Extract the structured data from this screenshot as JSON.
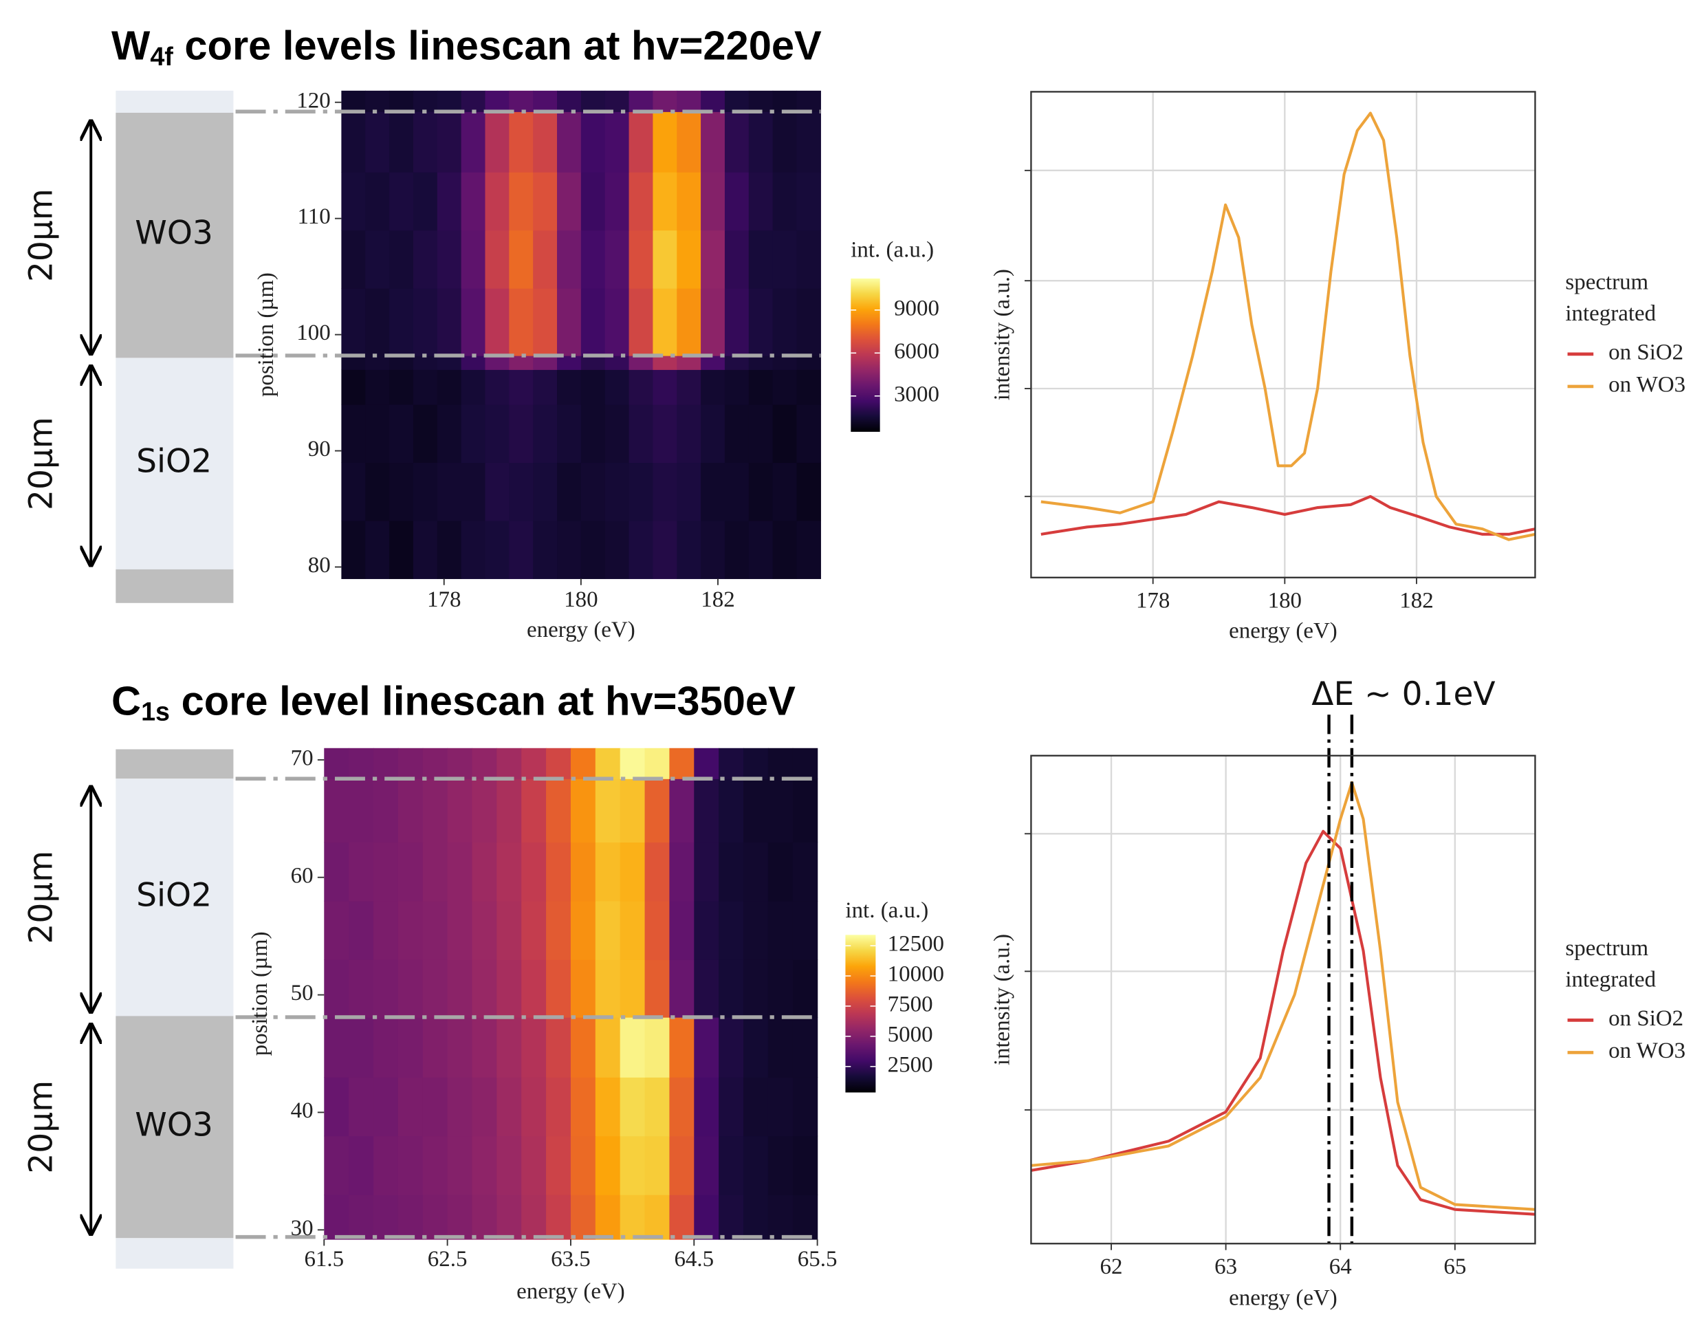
{
  "chart_data": [
    {
      "type": "heatmap",
      "title": [
        "W",
        "4f",
        " core levels linescan at hv=220eV"
      ],
      "x_label": "energy (eV)",
      "y_label": "position (µm)",
      "colorbar_title": "int. (a.u.)",
      "colormap": "inferno",
      "xlim": [
        176.5,
        183.5
      ],
      "xticks": [
        178,
        180,
        182
      ],
      "ylim": [
        79,
        121
      ],
      "yticks": [
        80,
        90,
        100,
        110,
        120
      ],
      "zlim": [
        500,
        11200
      ],
      "zticks": [
        3000,
        6000,
        9000
      ],
      "x_bins": [
        176.5,
        176.85,
        177.2,
        177.55,
        177.9,
        178.25,
        178.6,
        178.95,
        179.3,
        179.65,
        180,
        180.35,
        180.7,
        181.05,
        181.4,
        181.75,
        182.1,
        182.45,
        182.8,
        183.15,
        183.5
      ],
      "y_bins": [
        79,
        84,
        89,
        94,
        97,
        98.2,
        104,
        109,
        114,
        119.2,
        121
      ],
      "z": [
        [
          1100,
          1300,
          1000,
          1400,
          1200,
          1500,
          1600,
          1800,
          1500,
          1400,
          1300,
          1400,
          1700,
          1900,
          1600,
          1400,
          1200,
          1300,
          1100,
          1200
        ],
        [
          1300,
          1100,
          1200,
          1300,
          1400,
          1400,
          1800,
          1700,
          1600,
          1300,
          1400,
          1500,
          1600,
          1800,
          1700,
          1300,
          1300,
          1100,
          1200,
          1000
        ],
        [
          1200,
          1200,
          1300,
          1100,
          1300,
          1600,
          1700,
          1900,
          1700,
          1500,
          1300,
          1400,
          1800,
          2000,
          1800,
          1500,
          1200,
          1200,
          1000,
          1200
        ],
        [
          1000,
          1200,
          1100,
          1300,
          1200,
          1500,
          1800,
          2000,
          1800,
          1400,
          1300,
          1500,
          1900,
          2200,
          1900,
          1400,
          1300,
          1100,
          1200,
          1100
        ],
        [
          1300,
          1400,
          1300,
          1500,
          1600,
          2400,
          3600,
          4300,
          3900,
          2600,
          2000,
          2300,
          4000,
          5500,
          5000,
          2800,
          1800,
          1500,
          1400,
          1300
        ],
        [
          1500,
          1400,
          1600,
          1700,
          1900,
          3200,
          5800,
          7200,
          6800,
          4100,
          2600,
          3000,
          6500,
          9500,
          8600,
          4600,
          2300,
          1700,
          1500,
          1400
        ],
        [
          1400,
          1600,
          1500,
          1800,
          2000,
          3400,
          6200,
          7600,
          6600,
          3900,
          2700,
          3100,
          6800,
          9800,
          9000,
          4700,
          2200,
          1600,
          1600,
          1500
        ],
        [
          1600,
          1500,
          1700,
          1600,
          2100,
          3500,
          6000,
          7300,
          6900,
          4200,
          2500,
          2900,
          6600,
          9300,
          8800,
          4400,
          2400,
          1800,
          1500,
          1600
        ],
        [
          1500,
          1700,
          1500,
          1800,
          1900,
          3100,
          5600,
          6900,
          6400,
          3800,
          2600,
          2800,
          6200,
          9000,
          8400,
          4300,
          2100,
          1700,
          1400,
          1500
        ],
        [
          1300,
          1400,
          1300,
          1500,
          1600,
          2000,
          2800,
          3300,
          3000,
          2200,
          1800,
          1900,
          3100,
          3900,
          3600,
          2400,
          1600,
          1400,
          1300,
          1400
        ]
      ],
      "boundaries": [
        119.2,
        98.2
      ],
      "layers": [
        {
          "from": 119.1,
          "to": 121,
          "color": "#e9edf3"
        },
        {
          "from": 98,
          "to": 119.1,
          "color": "#bebebe",
          "label": "WO3",
          "span": "20µm"
        },
        {
          "from": 79.8,
          "to": 98,
          "color": "#e9edf3",
          "label": "SiO2",
          "span": "20µm"
        },
        {
          "from": 76.9,
          "to": 79.8,
          "color": "#bebebe"
        }
      ]
    },
    {
      "type": "line",
      "x_label": "energy (eV)",
      "y_label": "intensity (a.u.)",
      "xlim": [
        176.15,
        183.8
      ],
      "xticks": [
        178,
        180,
        182
      ],
      "ylim": [
        0,
        100
      ],
      "yticks": [
        16.7,
        38.9,
        61.1,
        83.8
      ],
      "grid": true,
      "legend_title": [
        "spectrum",
        "integrated"
      ],
      "series": [
        {
          "name": "on SiO2",
          "color": "#d63c3c",
          "x": [
            176.3,
            177,
            177.5,
            178,
            178.5,
            179,
            179.5,
            180,
            180.5,
            181,
            181.3,
            181.6,
            182,
            182.5,
            183,
            183.4,
            183.8
          ],
          "values": [
            8.9,
            10.4,
            11,
            12,
            13,
            15.6,
            14.4,
            13,
            14.4,
            15,
            16.7,
            14.4,
            12.7,
            10.4,
            8.9,
            8.9,
            10
          ]
        },
        {
          "name": "on WO3",
          "color": "#eda33a",
          "x": [
            176.3,
            177,
            177.5,
            178,
            178.3,
            178.6,
            178.9,
            179.1,
            179.3,
            179.5,
            179.7,
            179.9,
            180.1,
            180.3,
            180.5,
            180.7,
            180.9,
            181.1,
            181.3,
            181.5,
            181.7,
            181.9,
            182.1,
            182.3,
            182.6,
            183,
            183.4,
            183.8
          ],
          "values": [
            15.6,
            14.4,
            13.3,
            15.6,
            30,
            45.6,
            63,
            76.7,
            70,
            52,
            39,
            23,
            23,
            25.6,
            39,
            63,
            83,
            92,
            95.6,
            90,
            70,
            45.6,
            27.8,
            16.7,
            11,
            10,
            7.8,
            8.9
          ]
        }
      ]
    },
    {
      "type": "heatmap",
      "title": [
        "C",
        "1s",
        " core level linescan at hv=350eV"
      ],
      "x_label": "energy (eV)",
      "y_label": "position (µm)",
      "colorbar_title": "int. (a.u.)",
      "colormap": "inferno",
      "xlim": [
        61.5,
        65.5
      ],
      "xticks": [
        61.5,
        62.5,
        63.5,
        64.5,
        65.5
      ],
      "ylim": [
        29.2,
        71
      ],
      "yticks": [
        30,
        40,
        50,
        60,
        70
      ],
      "zlim": [
        350,
        13400
      ],
      "zticks": [
        2500,
        5000,
        7500,
        10000,
        12500
      ],
      "x_bins": [
        61.5,
        61.7,
        61.9,
        62.1,
        62.3,
        62.5,
        62.7,
        62.9,
        63.1,
        63.3,
        63.5,
        63.7,
        63.9,
        64.1,
        64.3,
        64.5,
        64.7,
        64.9,
        65.1,
        65.3,
        65.5
      ],
      "y_bins": [
        29.2,
        33,
        38,
        43,
        48.1,
        53,
        58,
        63,
        68.4,
        71
      ],
      "z": [
        [
          4300,
          4400,
          4500,
          4600,
          4800,
          5000,
          5300,
          5700,
          6300,
          7300,
          8800,
          10500,
          11600,
          11400,
          8200,
          3000,
          1800,
          1500,
          1400,
          1300
        ],
        [
          4400,
          4300,
          4600,
          4700,
          4900,
          5100,
          5400,
          5800,
          6400,
          7500,
          9000,
          10800,
          11900,
          11800,
          8600,
          3200,
          1700,
          1500,
          1300,
          1200
        ],
        [
          4200,
          4500,
          4500,
          4800,
          4800,
          5100,
          5300,
          5900,
          6500,
          7400,
          9100,
          11000,
          12200,
          12000,
          8800,
          3100,
          1800,
          1400,
          1400,
          1300
        ],
        [
          4400,
          4400,
          4600,
          4700,
          5000,
          5200,
          5500,
          6000,
          6600,
          7600,
          9300,
          11400,
          13000,
          12800,
          9200,
          3300,
          1900,
          1500,
          1300,
          1300
        ],
        [
          4500,
          4600,
          4700,
          4900,
          5100,
          5300,
          5700,
          6200,
          7000,
          8300,
          10000,
          11500,
          11300,
          8600,
          4200,
          2000,
          1600,
          1400,
          1300,
          1200
        ],
        [
          4600,
          4500,
          4800,
          5000,
          5100,
          5400,
          5800,
          6300,
          7200,
          8500,
          10200,
          11600,
          11200,
          8400,
          4000,
          1900,
          1600,
          1400,
          1300,
          1300
        ],
        [
          4500,
          4700,
          4800,
          4900,
          5200,
          5400,
          5900,
          6400,
          7100,
          8400,
          10100,
          11400,
          11100,
          8300,
          4100,
          2000,
          1500,
          1400,
          1200,
          1300
        ],
        [
          4600,
          4600,
          4700,
          5000,
          5200,
          5500,
          5800,
          6300,
          7300,
          8600,
          10300,
          11700,
          11500,
          8700,
          4300,
          2000,
          1600,
          1300,
          1300,
          1200
        ],
        [
          4400,
          4500,
          4600,
          4800,
          5000,
          5200,
          5500,
          6000,
          6700,
          7700,
          9500,
          11800,
          13200,
          12900,
          9000,
          3000,
          1800,
          1500,
          1300,
          1300
        ]
      ],
      "boundaries": [
        68.4,
        48.1,
        29.4
      ],
      "layers": [
        {
          "from": 68.4,
          "to": 70.9,
          "color": "#bebebe"
        },
        {
          "from": 48.2,
          "to": 68.4,
          "color": "#e9edf3",
          "label": "SiO2",
          "span": "20µm"
        },
        {
          "from": 29.3,
          "to": 48.2,
          "color": "#bebebe",
          "label": "WO3",
          "span": "20µm"
        },
        {
          "from": 26.7,
          "to": 29.3,
          "color": "#e9edf3"
        }
      ]
    },
    {
      "type": "line",
      "x_label": "energy (eV)",
      "y_label": "intensity (a.u.)",
      "xlim": [
        61.3,
        65.7
      ],
      "xticks": [
        62,
        63,
        64,
        65
      ],
      "ylim": [
        0,
        100
      ],
      "yticks": [
        27.4,
        55.8,
        84
      ],
      "grid": true,
      "legend_title": [
        "spectrum",
        "integrated"
      ],
      "annotation": "ΔE ~ 0.1eV",
      "vlines": [
        63.9,
        64.1
      ],
      "series": [
        {
          "name": "on SiO2",
          "color": "#d63c3c",
          "x": [
            61.3,
            61.8,
            62.5,
            63,
            63.3,
            63.5,
            63.7,
            63.85,
            64,
            64.2,
            64.35,
            64.5,
            64.7,
            65,
            65.7
          ],
          "values": [
            15,
            17,
            21,
            27,
            38,
            60,
            78,
            84.5,
            81,
            60,
            34,
            16,
            9,
            7,
            6
          ]
        },
        {
          "name": "on WO3",
          "color": "#eda33a",
          "x": [
            61.3,
            61.8,
            62.5,
            63,
            63.3,
            63.6,
            63.8,
            64,
            64.1,
            64.2,
            64.35,
            64.5,
            64.7,
            65,
            65.7
          ],
          "values": [
            16,
            17,
            20,
            26,
            34,
            51,
            69,
            87,
            94.5,
            87,
            60,
            29,
            11.5,
            8,
            7
          ]
        }
      ]
    }
  ]
}
